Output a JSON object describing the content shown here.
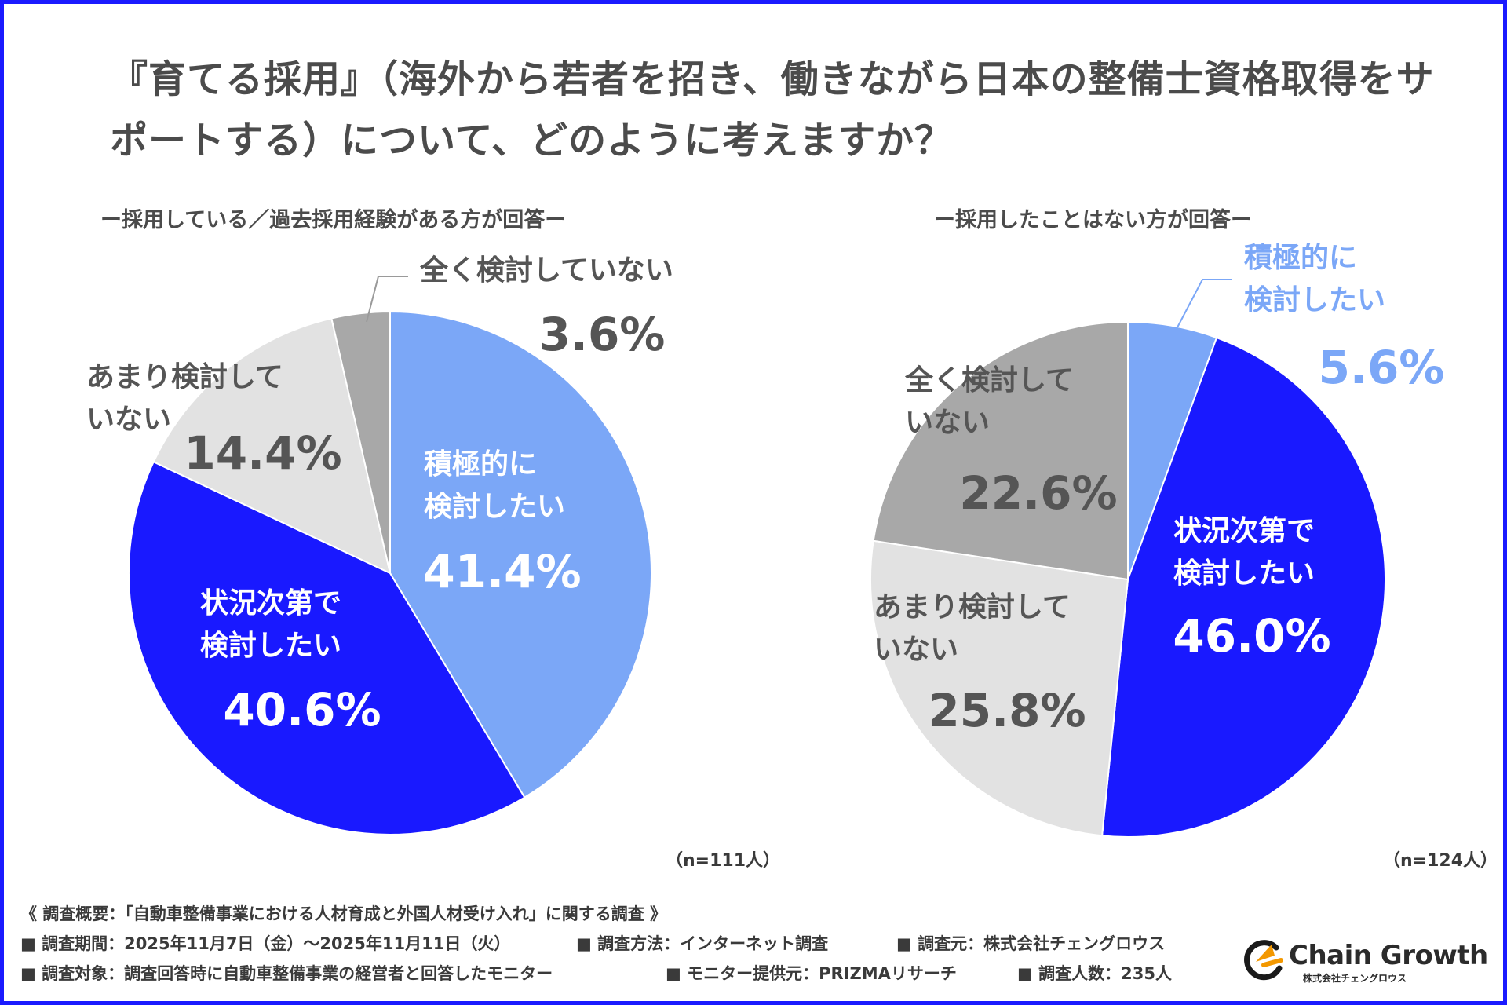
{
  "title": "『育てる採用』（海外から若者を招き、働きながら日本の整備士資格取得をサポートする）について、どのように考えますか？",
  "colors": {
    "frame": "#1a1aff",
    "positive": "#7ba7f7",
    "conditional": "#1919ff",
    "not_much": "#e2e2e2",
    "not_at_all": "#a8a8a8"
  },
  "chart_data": [
    {
      "type": "pie",
      "title": "ー採用している／過去採用経験がある方が回答ー",
      "n_label": "（n=111人）",
      "slices": [
        {
          "label": "積極的に検討したい",
          "label_lines": [
            "積極的に",
            "検討したい"
          ],
          "value": 41.4,
          "value_text": "41.4%",
          "color": "#7ba7f7"
        },
        {
          "label": "状況次第で検討したい",
          "label_lines": [
            "状況次第で",
            "検討したい"
          ],
          "value": 40.6,
          "value_text": "40.6%",
          "color": "#1919ff"
        },
        {
          "label": "あまり検討していない",
          "label_lines": [
            "あまり検討して",
            "いない"
          ],
          "value": 14.4,
          "value_text": "14.4%",
          "color": "#e2e2e2"
        },
        {
          "label": "全く検討していない",
          "label_lines": [
            "全く検討していない"
          ],
          "value": 3.6,
          "value_text": "3.6%",
          "color": "#a8a8a8"
        }
      ]
    },
    {
      "type": "pie",
      "title": "ー採用したことはない方が回答ー",
      "n_label": "（n=124人）",
      "slices": [
        {
          "label": "積極的に検討したい",
          "label_lines": [
            "積極的に",
            "検討したい"
          ],
          "value": 5.6,
          "value_text": "5.6%",
          "color": "#7ba7f7"
        },
        {
          "label": "状況次第で検討したい",
          "label_lines": [
            "状況次第で",
            "検討したい"
          ],
          "value": 46.0,
          "value_text": "46.0%",
          "color": "#1919ff"
        },
        {
          "label": "あまり検討していない",
          "label_lines": [
            "あまり検討して",
            "いない"
          ],
          "value": 25.8,
          "value_text": "25.8%",
          "color": "#e2e2e2"
        },
        {
          "label": "全く検討していない",
          "label_lines": [
            "全く検討して",
            "いない"
          ],
          "value": 22.6,
          "value_text": "22.6%",
          "color": "#a8a8a8"
        }
      ]
    }
  ],
  "survey": {
    "overview": "《 調査概要：「自動車整備事業における人材育成と外国人材受け入れ」に関する調査 》",
    "period": "■ 調査期間：2025年11月7日（金）〜2025年11月11日（火）",
    "method": "■ 調査方法：インターネット調査",
    "organizer": "■ 調査元：株式会社チェングロウス",
    "target": "■ 調査対象：調査回答時に自動車整備事業の経営者と回答したモニター",
    "provider": "■ モニター提供元：PRIZMAリサーチ",
    "respondents": "■ 調査人数：235人"
  },
  "logo": {
    "name": "Chain Growth",
    "company": "株式会社チェングロウス"
  }
}
